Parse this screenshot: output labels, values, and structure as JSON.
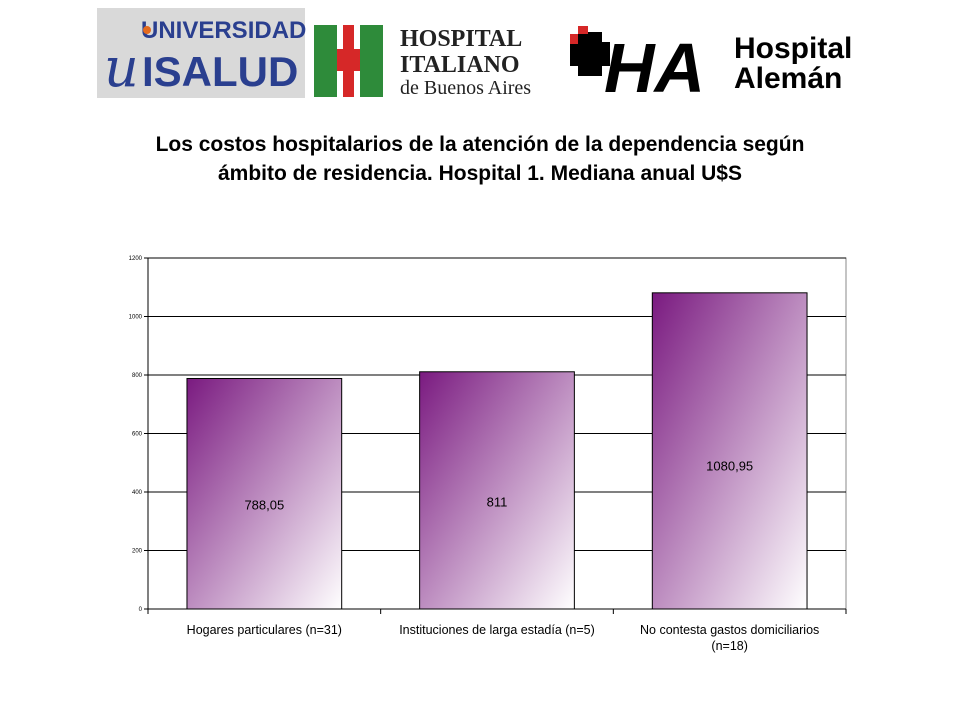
{
  "logos": {
    "isalud": {
      "line1": "UNIVERSIDAD",
      "mark": "u",
      "line2": "ISALUD"
    },
    "italiano": {
      "line1": "HOSPITAL",
      "line2": "ITALIANO",
      "line3": "de Buenos Aires"
    },
    "aleman": {
      "mark": "HA",
      "line1": "Hospital",
      "line2": "Alemán"
    }
  },
  "title": {
    "line1": "Los costos hospitalarios de la atención de la dependencia según",
    "line2": "ámbito de residencia. Hospital 1. Mediana anual U$S"
  },
  "chart_data": {
    "type": "bar",
    "categories": [
      [
        "Hogares particulares (n=31)"
      ],
      [
        "Instituciones de larga estadía (n=5)"
      ],
      [
        "No contesta gastos domiciliarios",
        "(n=18)"
      ]
    ],
    "values": [
      788.05,
      811,
      1080.95
    ],
    "data_labels": [
      "788,05",
      "811",
      "1080,95"
    ],
    "ylim": [
      0,
      1200
    ],
    "yticks": [
      0,
      200,
      400,
      600,
      800,
      1000,
      1200
    ],
    "grid": true,
    "legend": "none",
    "colors": {
      "bar_dark": "#7a1a80",
      "bar_light": "#ffffff",
      "grid": "#000000"
    }
  }
}
